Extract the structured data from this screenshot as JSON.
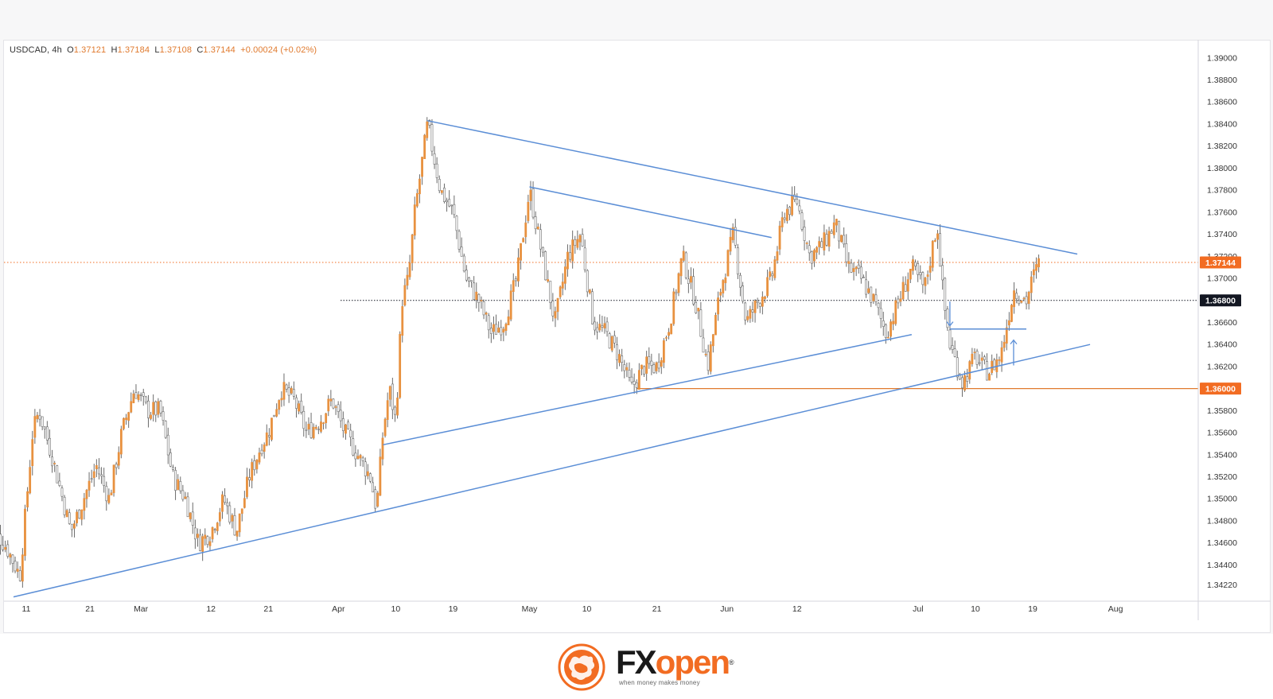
{
  "legend": {
    "symbol": "USDCAD, 4h",
    "o_label": "O",
    "o_value": "1.37121",
    "h_label": "H",
    "h_value": "1.37184",
    "l_label": "L",
    "l_value": "1.37108",
    "c_label": "C",
    "c_value": "1.37144",
    "change": "+0.00024 (+0.02%)"
  },
  "colors": {
    "candle": "#e8913f",
    "wick": "#6b6b6b",
    "trendline": "#5b8ed6",
    "level_1360": "#e07a2e",
    "tag_black": "#131722",
    "tag_orange": "#f26c22"
  },
  "chart_data": {
    "type": "line",
    "instrument": "USDCAD",
    "timeframe": "4h",
    "ylim": [
      1.341,
      1.3915
    ],
    "y_ticks": [
      "1.39000",
      "1.38800",
      "1.38600",
      "1.38400",
      "1.38200",
      "1.38000",
      "1.37800",
      "1.37600",
      "1.37400",
      "1.37200",
      "1.37000",
      "1.36800",
      "1.36600",
      "1.36400",
      "1.36200",
      "1.36000",
      "1.35800",
      "1.35600",
      "1.35400",
      "1.35200",
      "1.35000",
      "1.34800",
      "1.34600",
      "1.34400",
      "1.34220"
    ],
    "x_ticks": [
      {
        "label": "11",
        "date": "2023-02-11"
      },
      {
        "label": "21",
        "date": "2023-02-21"
      },
      {
        "label": "Mar",
        "date": "2023-03-01"
      },
      {
        "label": "12",
        "date": "2023-03-12"
      },
      {
        "label": "21",
        "date": "2023-03-21"
      },
      {
        "label": "Apr",
        "date": "2023-04-01"
      },
      {
        "label": "10",
        "date": "2023-04-10"
      },
      {
        "label": "19",
        "date": "2023-04-19"
      },
      {
        "label": "May",
        "date": "2023-05-01"
      },
      {
        "label": "10",
        "date": "2023-05-10"
      },
      {
        "label": "21",
        "date": "2023-05-21"
      },
      {
        "label": "Jun",
        "date": "2023-06-01"
      },
      {
        "label": "12",
        "date": "2023-06-12"
      },
      {
        "label": "Jul",
        "date": "2023-07-01"
      },
      {
        "label": "10",
        "date": "2023-07-10"
      },
      {
        "label": "19",
        "date": "2023-07-19"
      },
      {
        "label": "Aug",
        "date": "2023-08-01"
      }
    ],
    "series": [
      {
        "x": [
          "2023-02-05",
          "2023-02-08",
          "2023-02-10",
          "2023-02-12",
          "2023-02-13",
          "2023-02-15",
          "2023-02-18",
          "2023-02-20",
          "2023-02-22",
          "2023-02-24",
          "2023-02-26",
          "2023-02-28",
          "2023-03-02",
          "2023-03-04",
          "2023-03-06",
          "2023-03-08",
          "2023-03-10",
          "2023-03-12",
          "2023-03-14",
          "2023-03-16",
          "2023-03-18",
          "2023-03-20",
          "2023-03-21",
          "2023-03-23",
          "2023-03-25",
          "2023-03-27",
          "2023-03-29",
          "2023-03-31",
          "2023-04-02",
          "2023-04-04",
          "2023-04-06",
          "2023-04-07",
          "2023-04-08",
          "2023-04-09",
          "2023-04-10",
          "2023-04-11",
          "2023-04-12",
          "2023-04-13",
          "2023-04-14",
          "2023-04-15",
          "2023-04-17",
          "2023-04-19",
          "2023-04-21",
          "2023-04-23",
          "2023-04-25",
          "2023-04-27",
          "2023-04-29",
          "2023-05-01",
          "2023-05-03",
          "2023-05-05",
          "2023-05-07",
          "2023-05-09",
          "2023-05-11",
          "2023-05-13",
          "2023-05-15",
          "2023-05-17",
          "2023-05-19",
          "2023-05-21",
          "2023-05-23",
          "2023-05-25",
          "2023-05-27",
          "2023-05-29",
          "2023-05-31",
          "2023-06-02",
          "2023-06-04",
          "2023-06-06",
          "2023-06-08",
          "2023-06-10",
          "2023-06-12",
          "2023-06-14",
          "2023-06-16",
          "2023-06-18",
          "2023-06-20",
          "2023-06-22",
          "2023-06-24",
          "2023-06-26",
          "2023-06-28",
          "2023-06-30",
          "2023-07-02",
          "2023-07-04",
          "2023-07-05",
          "2023-07-06",
          "2023-07-08",
          "2023-07-10",
          "2023-07-11",
          "2023-07-12",
          "2023-07-14",
          "2023-07-16",
          "2023-07-18",
          "2023-07-19",
          "2023-07-20"
        ],
        "y": [
          1.348,
          1.3455,
          1.343,
          1.356,
          1.358,
          1.354,
          1.347,
          1.35,
          1.353,
          1.35,
          1.356,
          1.36,
          1.358,
          1.358,
          1.352,
          1.35,
          1.346,
          1.347,
          1.35,
          1.347,
          1.352,
          1.355,
          1.356,
          1.36,
          1.359,
          1.356,
          1.357,
          1.359,
          1.356,
          1.354,
          1.352,
          1.349,
          1.356,
          1.36,
          1.357,
          1.368,
          1.37,
          1.376,
          1.38,
          1.384,
          1.378,
          1.376,
          1.37,
          1.368,
          1.365,
          1.366,
          1.37,
          1.378,
          1.372,
          1.366,
          1.372,
          1.374,
          1.366,
          1.365,
          1.363,
          1.36,
          1.362,
          1.362,
          1.366,
          1.372,
          1.368,
          1.362,
          1.369,
          1.374,
          1.366,
          1.368,
          1.37,
          1.376,
          1.377,
          1.372,
          1.373,
          1.375,
          1.371,
          1.37,
          1.368,
          1.365,
          1.368,
          1.371,
          1.369,
          1.375,
          1.368,
          1.364,
          1.3605,
          1.363,
          1.362,
          1.3615,
          1.363,
          1.369,
          1.368,
          1.37,
          1.3714
        ]
      }
    ],
    "annotations": {
      "horizontal_levels": [
        {
          "price": 1.368,
          "label": "1.36800",
          "style": "dotted",
          "color": "#131722"
        },
        {
          "price": 1.36,
          "label": "1.36000",
          "style": "solid",
          "color": "#e07a2e"
        }
      ],
      "current_price": {
        "price": 1.37144,
        "label": "1.37144"
      },
      "trendlines": [
        {
          "name": "upper-resistance",
          "from": {
            "date": "2023-04-15",
            "price": 1.3843
          },
          "to": {
            "date": "2023-07-26",
            "price": 1.3722
          }
        },
        {
          "name": "inner-upper",
          "from": {
            "date": "2023-05-01",
            "price": 1.3783
          },
          "to": {
            "date": "2023-06-08",
            "price": 1.3737
          }
        },
        {
          "name": "inner-lower-support",
          "from": {
            "date": "2023-04-08",
            "price": 1.3549
          },
          "to": {
            "date": "2023-06-30",
            "price": 1.3649
          }
        },
        {
          "name": "main-support",
          "from": {
            "date": "2023-02-09",
            "price": 1.3411
          },
          "to": {
            "date": "2023-07-28",
            "price": 1.364
          }
        },
        {
          "name": "short-support-level",
          "from": {
            "date": "2023-07-06",
            "price": 1.3654
          },
          "to": {
            "date": "2023-07-18",
            "price": 1.3654
          }
        }
      ],
      "arrows": [
        {
          "direction": "down",
          "date": "2023-07-06",
          "from_price": 1.3679,
          "to_price": 1.3657
        },
        {
          "direction": "up",
          "date": "2023-07-16",
          "from_price": 1.3621,
          "to_price": 1.3644
        }
      ]
    }
  },
  "brand": {
    "name_left": "FX",
    "name_right": "open",
    "registered": "®",
    "tagline": "when money makes money"
  }
}
